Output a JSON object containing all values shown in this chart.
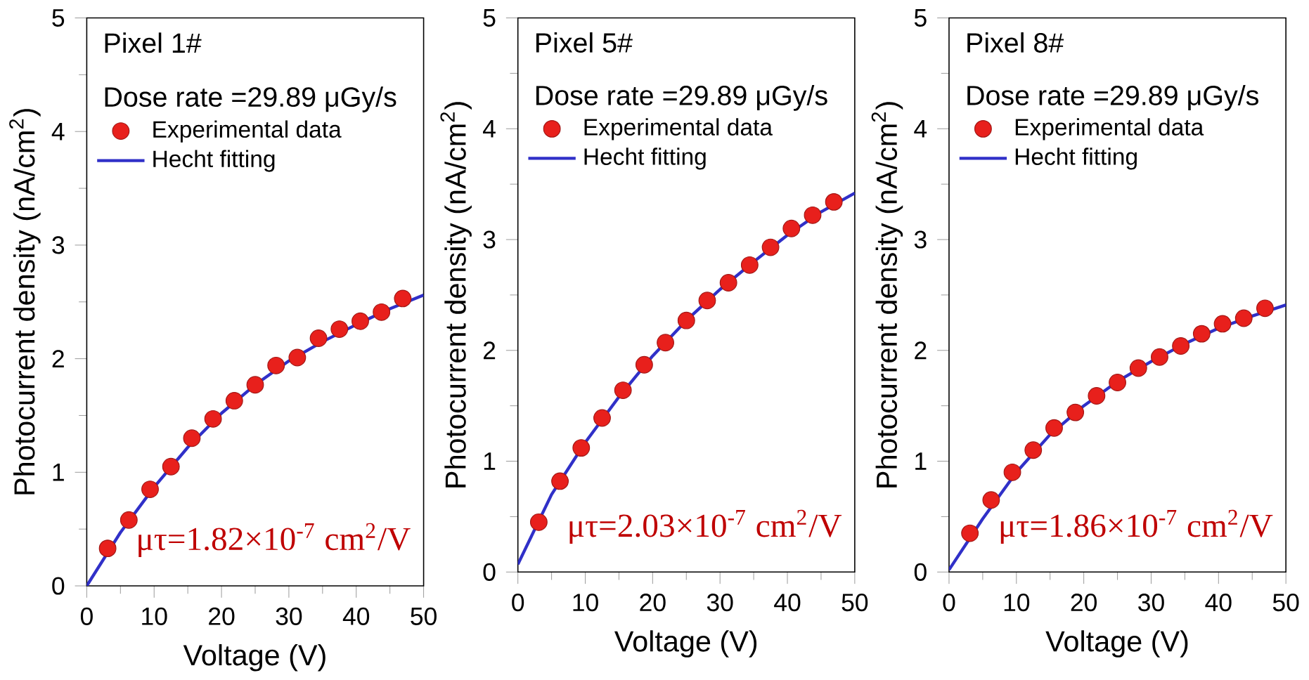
{
  "chart_data": [
    {
      "type": "line",
      "xlabel": "Voltage (V)",
      "ylabel": "Photocurrent density (nA/cm$^{2}$)",
      "xlim": [
        0,
        50
      ],
      "ylim": [
        0,
        5
      ],
      "xticks": [
        0,
        10,
        20,
        30,
        40,
        50
      ],
      "yticks": [
        0,
        1,
        2,
        3,
        4,
        5
      ],
      "legend": "top left",
      "annotations": [
        "Pixel 1#",
        "Dose rate =29.89 μGy/s",
        "μτ=1.82×10$^{-7}$ cm$^{2}$/V"
      ],
      "series": [
        {
          "name": "Experimental data",
          "type": "scatter",
          "marker": "circle",
          "color": "#e8201c",
          "x": [
            3.1,
            6.25,
            9.4,
            12.5,
            15.6,
            18.75,
            21.9,
            25,
            28.1,
            31.25,
            34.4,
            37.5,
            40.6,
            43.75,
            46.9
          ],
          "values": [
            0.33,
            0.58,
            0.85,
            1.05,
            1.3,
            1.47,
            1.63,
            1.77,
            1.94,
            2.01,
            2.18,
            2.26,
            2.33,
            2.41,
            2.53
          ]
        },
        {
          "name": "Hecht fitting",
          "color": "#3030c8",
          "x": [
            0,
            5,
            10,
            15,
            20,
            25,
            30,
            35,
            40,
            45,
            50
          ],
          "values": [
            0,
            0.47,
            0.87,
            1.22,
            1.52,
            1.77,
            1.98,
            2.15,
            2.3,
            2.44,
            2.56
          ]
        }
      ]
    },
    {
      "type": "line",
      "xlabel": "Voltage (V)",
      "ylabel": "Photocurrent density (nA/cm$^{2}$)",
      "xlim": [
        0,
        50
      ],
      "ylim": [
        0,
        5
      ],
      "xticks": [
        0,
        10,
        20,
        30,
        40,
        50
      ],
      "yticks": [
        0,
        1,
        2,
        3,
        4,
        5
      ],
      "legend": "top left",
      "annotations": [
        "Pixel 5#",
        "Dose rate =29.89 μGy/s",
        "μτ=2.03×10$^{-7}$ cm$^{2}$/V"
      ],
      "series": [
        {
          "name": "Experimental data",
          "type": "scatter",
          "marker": "circle",
          "color": "#e8201c",
          "x": [
            3.1,
            6.25,
            9.4,
            12.5,
            15.6,
            18.75,
            21.9,
            25,
            28.1,
            31.25,
            34.4,
            37.5,
            40.6,
            43.75,
            46.9
          ],
          "values": [
            0.45,
            0.82,
            1.12,
            1.39,
            1.64,
            1.87,
            2.07,
            2.27,
            2.45,
            2.61,
            2.77,
            2.93,
            3.1,
            3.22,
            3.34
          ]
        },
        {
          "name": "Hecht fitting",
          "color": "#3030c8",
          "x": [
            0,
            5,
            10,
            15,
            20,
            25,
            30,
            35,
            40,
            45,
            50
          ],
          "values": [
            0.07,
            0.7,
            1.17,
            1.58,
            1.95,
            2.27,
            2.55,
            2.8,
            3.04,
            3.25,
            3.42
          ]
        }
      ]
    },
    {
      "type": "line",
      "xlabel": "Voltage (V)",
      "ylabel": "Photocurrent density (nA/cm$^{2}$)",
      "xlim": [
        0,
        50
      ],
      "ylim": [
        0,
        5
      ],
      "xticks": [
        0,
        10,
        20,
        30,
        40,
        50
      ],
      "yticks": [
        0,
        1,
        2,
        3,
        4,
        5
      ],
      "legend": "top left",
      "annotations": [
        "Pixel 8#",
        "Dose rate =29.89 μGy/s",
        "μτ=1.86×10$^{-7}$ cm$^{2}$/V"
      ],
      "series": [
        {
          "name": "Experimental data",
          "type": "scatter",
          "marker": "circle",
          "color": "#e8201c",
          "x": [
            3.1,
            6.25,
            9.4,
            12.5,
            15.6,
            18.75,
            21.9,
            25,
            28.1,
            31.25,
            34.4,
            37.5,
            40.6,
            43.75,
            46.9
          ],
          "values": [
            0.35,
            0.65,
            0.9,
            1.1,
            1.3,
            1.44,
            1.59,
            1.71,
            1.84,
            1.94,
            2.04,
            2.15,
            2.24,
            2.29,
            2.38
          ]
        },
        {
          "name": "Hecht fitting",
          "color": "#3030c8",
          "x": [
            0,
            5,
            10,
            15,
            20,
            25,
            30,
            35,
            40,
            45,
            50
          ],
          "values": [
            0.02,
            0.48,
            0.9,
            1.24,
            1.5,
            1.72,
            1.9,
            2.06,
            2.2,
            2.31,
            2.41
          ]
        }
      ]
    }
  ]
}
